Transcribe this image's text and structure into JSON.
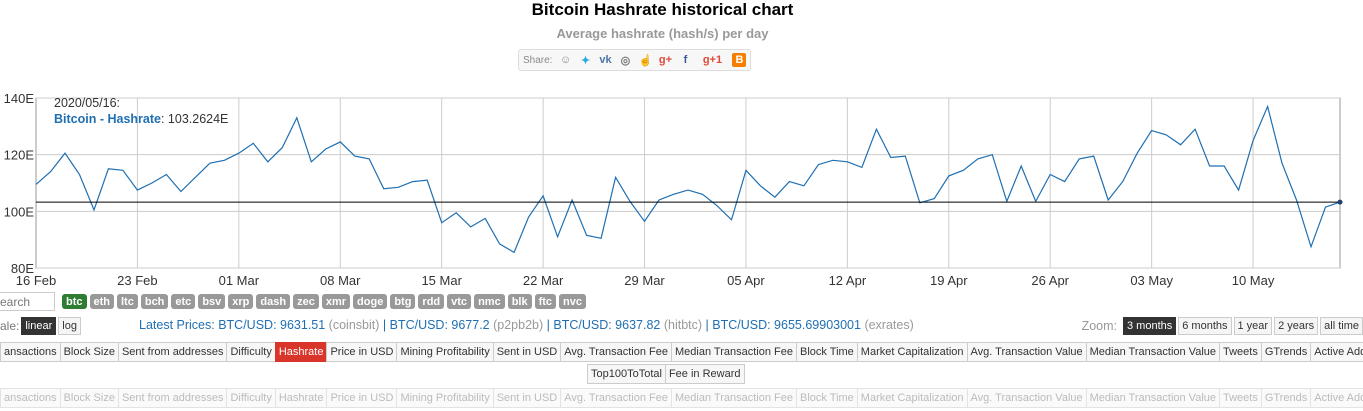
{
  "title": "Bitcoin Hashrate historical chart",
  "subtitle": "Average hashrate (hash/s) per day",
  "share": {
    "label": "Share:",
    "icons": [
      "reddit-icon",
      "twitter-icon",
      "vk-icon",
      "weibo-icon",
      "like-icon",
      "google-plus-icon",
      "facebook-icon",
      "google-plus-one-icon",
      "blogger-icon"
    ]
  },
  "tooltip": {
    "date": "2020/05/16:",
    "series": "Bitcoin - Hashrate",
    "value": "103.2624E"
  },
  "search_placeholder": "earch",
  "coins": [
    "btc",
    "eth",
    "ltc",
    "bch",
    "etc",
    "bsv",
    "xrp",
    "dash",
    "zec",
    "xmr",
    "doge",
    "btg",
    "rdd",
    "vtc",
    "nmc",
    "blk",
    "ftc",
    "nvc"
  ],
  "scale": {
    "label": "ale:",
    "linear": "linear",
    "log": "log"
  },
  "prices": {
    "prefix": "Latest Prices: ",
    "items": [
      {
        "pair": "BTC/USD: 9631.51",
        "src": " (coinsbit)"
      },
      {
        "pair": "BTC/USD: 9677.2",
        "src": " (p2pb2b)"
      },
      {
        "pair": "BTC/USD: 9637.82",
        "src": " (hitbtc)"
      },
      {
        "pair": "BTC/USD: 9655.69903001",
        "src": " (exrates)"
      }
    ],
    "sep": " | "
  },
  "zoom": {
    "label": "Zoom:",
    "options": [
      "3 months",
      "6 months",
      "1 year",
      "2 years",
      "all time"
    ]
  },
  "tabs": [
    "ansactions",
    "Block Size",
    "Sent from addresses",
    "Difficulty",
    "Hashrate",
    "Price in USD",
    "Mining Profitability",
    "Sent in USD",
    "Avg. Transaction Fee",
    "Median Transaction Fee",
    "Block Time",
    "Market Capitalization",
    "Avg. Transaction Value",
    "Median Transaction Value",
    "Tweets",
    "GTrends",
    "Active Addresses"
  ],
  "tabs_extra": [
    "Top100ToTotal",
    "Fee in Reward"
  ],
  "colors": {
    "line": "#1f6fb2",
    "active_tab": "#d9352b",
    "active_coin": "#2e7d32"
  },
  "chart_data": {
    "type": "line",
    "title": "Bitcoin Hashrate historical chart",
    "subtitle": "Average hashrate (hash/s) per day",
    "x_start": "16 Feb",
    "xticks": [
      "16 Feb",
      "23 Feb",
      "01 Mar",
      "08 Mar",
      "15 Mar",
      "22 Mar",
      "29 Mar",
      "05 Apr",
      "12 Apr",
      "19 Apr",
      "26 Apr",
      "03 May",
      "10 May"
    ],
    "yticks": [
      "80E",
      "100E",
      "120E",
      "140E"
    ],
    "ylim": [
      80,
      140
    ],
    "grid": true,
    "series": [
      {
        "name": "Bitcoin - Hashrate",
        "values": [
          109.5,
          114,
          120.5,
          113,
          100.5,
          115,
          114.5,
          107.5,
          110,
          113,
          107,
          112,
          117,
          118,
          120.5,
          124,
          117.5,
          122.5,
          133,
          117.5,
          122,
          124.5,
          119.5,
          118.5,
          108,
          108.5,
          110.5,
          111,
          96,
          99.5,
          94.5,
          97.5,
          88.5,
          85.5,
          98,
          105.5,
          91,
          104,
          91.5,
          90.5,
          112,
          103.5,
          96.5,
          104,
          106,
          107.5,
          106,
          102,
          97,
          114.5,
          109,
          105,
          110.5,
          109,
          116.5,
          118,
          117.5,
          115.5,
          129,
          119,
          119.5,
          103,
          104.5,
          112.5,
          114.5,
          118.5,
          120,
          103.5,
          116,
          103.5,
          113,
          110.5,
          118.5,
          119.5,
          104,
          110.5,
          120.5,
          128.5,
          127,
          123.5,
          129,
          116,
          116,
          107.5,
          125,
          137,
          117,
          104,
          87.5,
          101.5,
          103.2624
        ]
      }
    ],
    "reference_line": 103.2624
  }
}
